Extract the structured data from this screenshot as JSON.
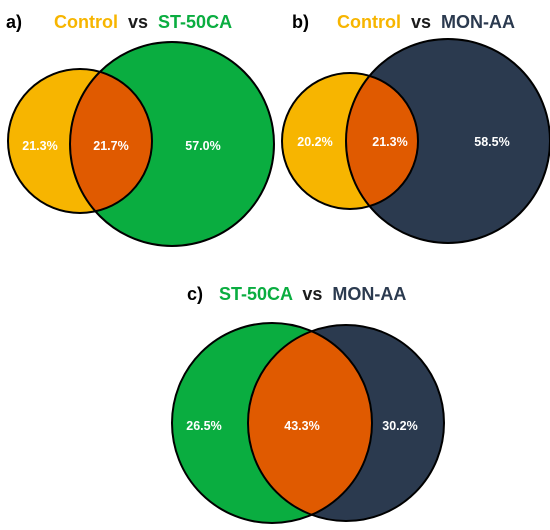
{
  "colors": {
    "control": "#f7b500",
    "st50ca": "#0aad40",
    "monaa": "#2b3a4f",
    "overlap": "#e05a00",
    "outline": "#000000",
    "title_text": "#1b1b1b"
  },
  "panels": [
    {
      "label": "a)",
      "left_name": "Control",
      "vs": "vs",
      "right_name": "ST-50CA",
      "left_only": "21.3%",
      "overlap": "21.7%",
      "right_only": "57.0%",
      "left_color": "control",
      "right_color": "st50ca"
    },
    {
      "label": "b)",
      "left_name": "Control",
      "vs": "vs",
      "right_name": "MON-AA",
      "left_only": "20.2%",
      "overlap": "21.3%",
      "right_only": "58.5%",
      "left_color": "control",
      "right_color": "monaa"
    },
    {
      "label": "c)",
      "left_name": "ST-50CA",
      "vs": "vs",
      "right_name": "MON-AA",
      "left_only": "26.5%",
      "overlap": "43.3%",
      "right_only": "30.2%",
      "left_color": "st50ca",
      "right_color": "monaa"
    }
  ]
}
